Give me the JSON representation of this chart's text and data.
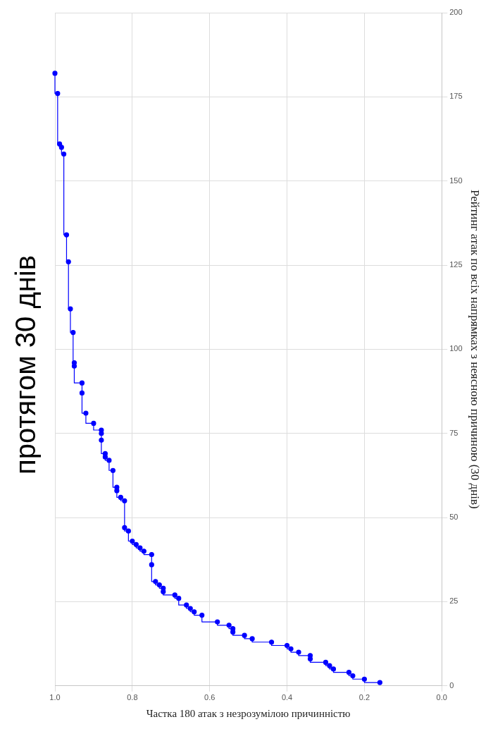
{
  "chart_data": {
    "type": "step",
    "title": "протягом 30 днів",
    "ylabel": "Рейтинг атак по всіх напрямках з неясною причиною (30 днів)",
    "xlabel": "Частка 180 атак з незрозумілою причинністю",
    "x": [
      0.16,
      0.2,
      0.23,
      0.24,
      0.28,
      0.29,
      0.3,
      0.34,
      0.34,
      0.37,
      0.39,
      0.4,
      0.44,
      0.49,
      0.51,
      0.54,
      0.54,
      0.55,
      0.58,
      0.62,
      0.64,
      0.65,
      0.66,
      0.68,
      0.69,
      0.72,
      0.72,
      0.73,
      0.74,
      0.75,
      0.75,
      0.77,
      0.78,
      0.79,
      0.8,
      0.81,
      0.82,
      0.82,
      0.83,
      0.84,
      0.84,
      0.85,
      0.86,
      0.87,
      0.87,
      0.88,
      0.88,
      0.88,
      0.9,
      0.92,
      0.93,
      0.93,
      0.95,
      0.95,
      0.953,
      0.96,
      0.965,
      0.97,
      0.977,
      0.983,
      0.988,
      0.993,
      1.0
    ],
    "series": [
      {
        "color": "#0000ff",
        "values": [
          1,
          2,
          3,
          4,
          5,
          6,
          7,
          8,
          9,
          10,
          11,
          12,
          13,
          14,
          15,
          16,
          17,
          18,
          19,
          21,
          22,
          23,
          24,
          26,
          27,
          28,
          29,
          30,
          31,
          36,
          39,
          40,
          41,
          42,
          43,
          46,
          47,
          55,
          56,
          58,
          59,
          64,
          67,
          68,
          69,
          73,
          75,
          76,
          78,
          81,
          87,
          90,
          95,
          96,
          105,
          112,
          126,
          134,
          158,
          160,
          161,
          176,
          182
        ]
      }
    ],
    "xlim": [
      1,
      0
    ],
    "xticks": [
      {
        "value": 1,
        "label": "1.0"
      },
      0.8,
      0.6,
      0.4,
      0.2,
      {
        "value": 0,
        "label": "0.0"
      }
    ],
    "ylim": [
      0,
      200
    ],
    "yticks": [
      0,
      25,
      50,
      75,
      100,
      125,
      150,
      175,
      200
    ],
    "grid": true,
    "marker": "circle",
    "line_style": "solid"
  }
}
